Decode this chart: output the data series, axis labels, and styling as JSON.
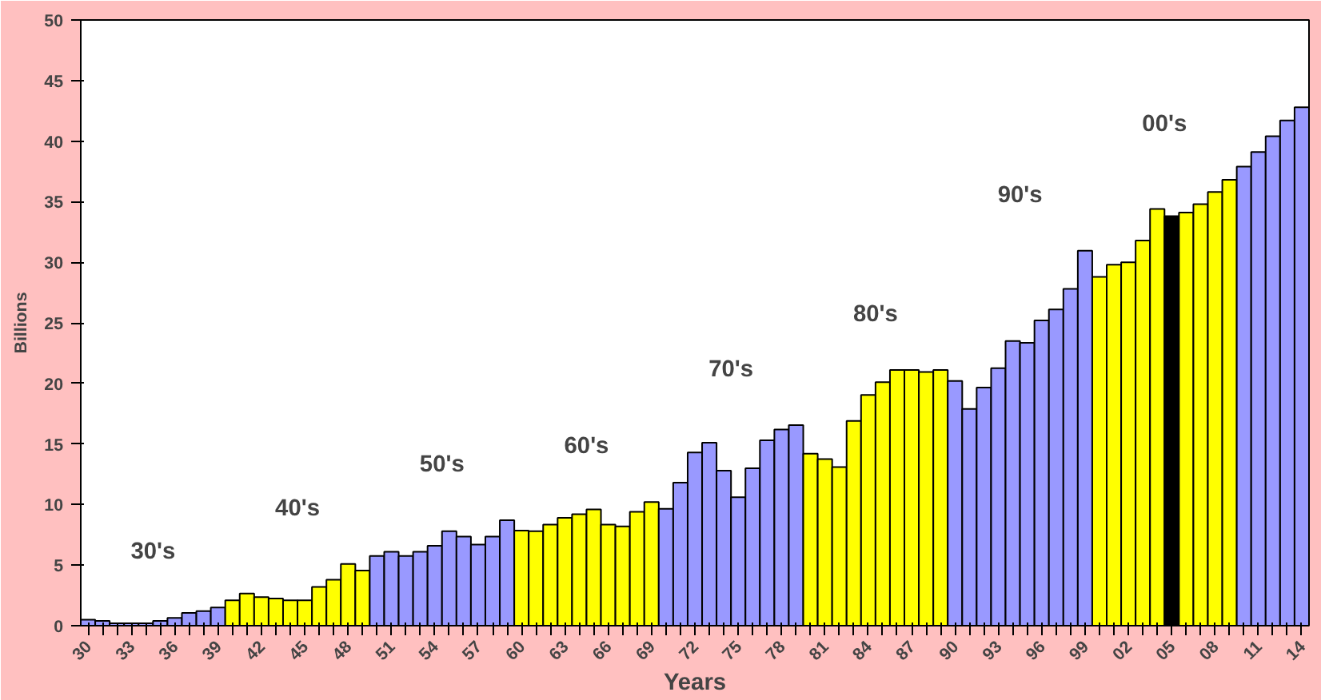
{
  "chart_data": {
    "type": "bar",
    "xlabel": "Years",
    "ylabel": "Billions",
    "categories": [
      "30",
      null,
      null,
      "33",
      null,
      null,
      "36",
      null,
      null,
      "39",
      null,
      null,
      "42",
      null,
      null,
      "45",
      null,
      null,
      "48",
      null,
      null,
      "51",
      null,
      null,
      "54",
      null,
      null,
      "57",
      null,
      null,
      "60",
      null,
      null,
      "63",
      null,
      null,
      "66",
      null,
      null,
      "69",
      null,
      null,
      "72",
      null,
      null,
      "75",
      null,
      null,
      "78",
      null,
      null,
      "81",
      null,
      null,
      "84",
      null,
      null,
      "87",
      null,
      null,
      "90",
      null,
      null,
      "93",
      null,
      null,
      "96",
      null,
      null,
      "99",
      null,
      null,
      "02",
      null,
      null,
      "05",
      null,
      null,
      "08",
      null,
      null,
      "11",
      null,
      null,
      "14"
    ],
    "values": [
      0.5,
      0.4,
      0.2,
      0.2,
      0.2,
      0.4,
      0.65,
      1.05,
      1.2,
      1.5,
      2.1,
      2.65,
      2.35,
      2.25,
      2.1,
      2.1,
      3.2,
      3.8,
      5.1,
      4.55,
      5.75,
      6.1,
      5.75,
      6.1,
      6.6,
      7.8,
      7.35,
      6.7,
      7.35,
      8.7,
      7.85,
      7.8,
      8.35,
      8.9,
      9.2,
      9.6,
      8.35,
      8.2,
      9.4,
      10.2,
      9.65,
      11.8,
      14.3,
      15.1,
      12.8,
      10.6,
      13.0,
      15.3,
      16.2,
      16.55,
      14.2,
      13.75,
      13.1,
      16.9,
      19.05,
      20.1,
      21.1,
      21.1,
      20.95,
      21.1,
      20.2,
      17.9,
      19.65,
      21.25,
      23.5,
      23.35,
      25.2,
      26.1,
      27.8,
      30.95,
      28.8,
      29.8,
      30.0,
      31.8,
      34.4,
      33.8,
      34.1,
      34.8,
      35.8,
      36.8,
      37.9,
      39.1,
      40.4,
      41.7,
      42.8
    ],
    "colors": [
      "#9999ff",
      "#9999ff",
      "#9999ff",
      "#9999ff",
      "#9999ff",
      "#9999ff",
      "#9999ff",
      "#9999ff",
      "#9999ff",
      "#9999ff",
      "#ffff00",
      "#ffff00",
      "#ffff00",
      "#ffff00",
      "#ffff00",
      "#ffff00",
      "#ffff00",
      "#ffff00",
      "#ffff00",
      "#ffff00",
      "#9999ff",
      "#9999ff",
      "#9999ff",
      "#9999ff",
      "#9999ff",
      "#9999ff",
      "#9999ff",
      "#9999ff",
      "#9999ff",
      "#9999ff",
      "#ffff00",
      "#ffff00",
      "#ffff00",
      "#ffff00",
      "#ffff00",
      "#ffff00",
      "#ffff00",
      "#ffff00",
      "#ffff00",
      "#ffff00",
      "#9999ff",
      "#9999ff",
      "#9999ff",
      "#9999ff",
      "#9999ff",
      "#9999ff",
      "#9999ff",
      "#9999ff",
      "#9999ff",
      "#9999ff",
      "#ffff00",
      "#ffff00",
      "#ffff00",
      "#ffff00",
      "#ffff00",
      "#ffff00",
      "#ffff00",
      "#ffff00",
      "#ffff00",
      "#ffff00",
      "#9999ff",
      "#9999ff",
      "#9999ff",
      "#9999ff",
      "#9999ff",
      "#9999ff",
      "#9999ff",
      "#9999ff",
      "#9999ff",
      "#9999ff",
      "#ffff00",
      "#ffff00",
      "#ffff00",
      "#ffff00",
      "#ffff00",
      "#000000",
      "#ffff00",
      "#ffff00",
      "#ffff00",
      "#ffff00",
      "#9999ff",
      "#9999ff",
      "#9999ff",
      "#9999ff",
      "#9999ff"
    ],
    "ylim": [
      0,
      50
    ],
    "yticks": [
      0,
      5,
      10,
      15,
      20,
      25,
      30,
      35,
      40,
      45,
      50
    ],
    "grid": false,
    "annotations": [
      "30's",
      "40's",
      "50's",
      "60's",
      "70's",
      "80's",
      "90's",
      "00's"
    ]
  }
}
